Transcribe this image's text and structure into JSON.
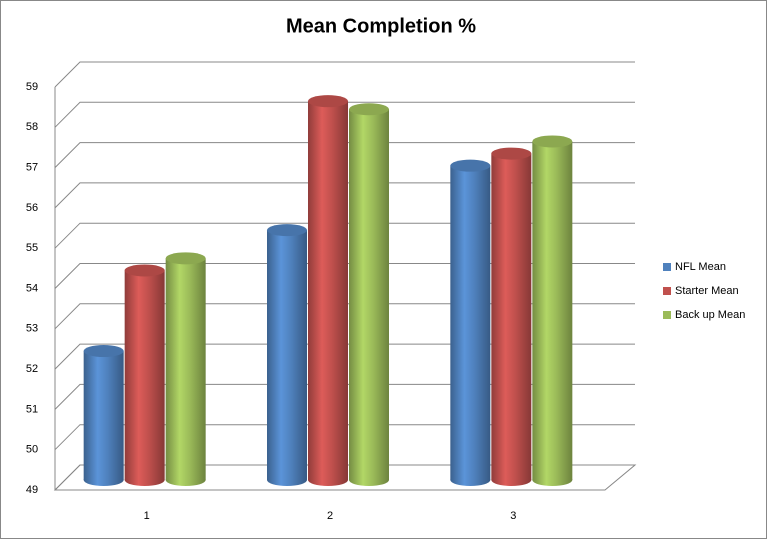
{
  "chart_data": {
    "type": "bar3d",
    "title": "Mean Completion %",
    "categories": [
      "1",
      "2",
      "3"
    ],
    "series": [
      {
        "name": "NFL Mean",
        "color": "#4f81bd",
        "values": [
          52.2,
          55.2,
          56.8
        ]
      },
      {
        "name": "Starter Mean",
        "color": "#c0504d",
        "values": [
          54.2,
          58.4,
          57.1
        ]
      },
      {
        "name": "Back up Mean",
        "color": "#9bbb59",
        "values": [
          54.5,
          58.2,
          57.4
        ]
      }
    ],
    "ylim": [
      49,
      59
    ],
    "yticks": [
      49,
      50,
      51,
      52,
      53,
      54,
      55,
      56,
      57,
      58,
      59
    ],
    "grid": true,
    "legend": "right"
  }
}
